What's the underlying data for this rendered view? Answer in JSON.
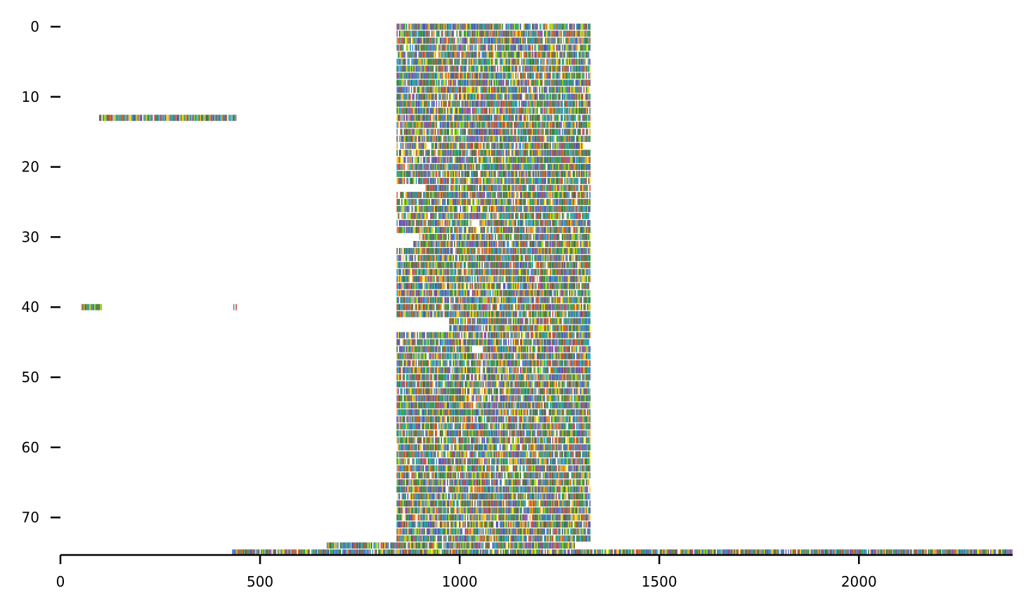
{
  "chart_data": {
    "type": "heatmap",
    "description_kind": "multiple sequence alignment coverage plot (colored residues per row)",
    "x_ticks": [
      0,
      500,
      1000,
      1500,
      2000
    ],
    "y_ticks": [
      0,
      10,
      20,
      30,
      40,
      50,
      60,
      70
    ],
    "xlim": [
      0,
      2385
    ],
    "ylim": [
      76,
      -1
    ],
    "y_inverted": true,
    "grid": false,
    "legend": "none",
    "palette": [
      "#1f6f1f",
      "#2a7d2a",
      "#1a8f3a",
      "#0b9e8f",
      "#1e90c8",
      "#2b5fb8",
      "#3a3fa8",
      "#7a3fa0",
      "#c0392b",
      "#d35400",
      "#e69a10",
      "#f0d000",
      "#8fd400",
      "#5b4a2a",
      "#7a5c2e",
      "#4d7f9e",
      "#9a9a9a"
    ],
    "blocks": [
      {
        "rows": [
          0,
          74
        ],
        "x_start": 842,
        "x_end": 1328,
        "note": "main dense aligned block"
      },
      {
        "rows": [
          13,
          13
        ],
        "x_start": 97,
        "x_end": 445
      },
      {
        "rows": [
          40,
          40
        ],
        "x_start": 52,
        "x_end": 104
      },
      {
        "rows": [
          40,
          40
        ],
        "x_start": 433,
        "x_end": 445
      },
      {
        "rows": [
          74,
          74
        ],
        "x_start": 667,
        "x_end": 842
      },
      {
        "rows": [
          75,
          75
        ],
        "x_start": 430,
        "x_end": 2385
      }
    ],
    "gaps": [
      {
        "row": 17,
        "x_start": 845,
        "x_end": 852
      },
      {
        "row": 17,
        "x_start": 915,
        "x_end": 930
      },
      {
        "row": 17,
        "x_start": 1308,
        "x_end": 1328
      },
      {
        "row": 23,
        "x_start": 842,
        "x_end": 915
      },
      {
        "row": 28,
        "x_start": 1030,
        "x_end": 1050
      },
      {
        "row": 30,
        "x_start": 842,
        "x_end": 900
      },
      {
        "row": 31,
        "x_start": 842,
        "x_end": 885
      },
      {
        "row": 42,
        "x_start": 842,
        "x_end": 975
      },
      {
        "row": 43,
        "x_start": 842,
        "x_end": 975
      },
      {
        "row": 46,
        "x_start": 1030,
        "x_end": 1060
      },
      {
        "row": 74,
        "x_start": 1290,
        "x_end": 1328
      }
    ]
  }
}
